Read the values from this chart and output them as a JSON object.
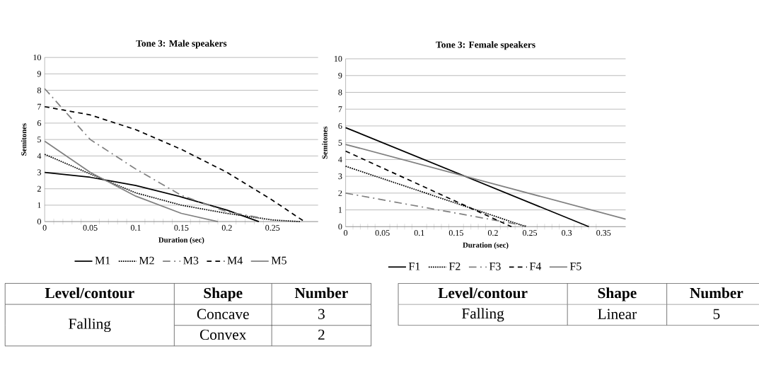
{
  "chart_data": [
    {
      "type": "line",
      "title": "Tone 3: Male speakers",
      "xlabel": "Duration (sec)",
      "ylabel": "Semitones",
      "xlim": [
        0,
        0.3
      ],
      "xticks": [
        0,
        0.05,
        0.1,
        0.15,
        0.2,
        0.25
      ],
      "ylim": [
        0,
        10
      ],
      "yticks": [
        0,
        1,
        2,
        3,
        4,
        5,
        6,
        7,
        8,
        9,
        10
      ],
      "grid": "y",
      "legend": "bottom",
      "series": [
        {
          "name": "M1",
          "color": "#000000",
          "line_style": "solid",
          "x": [
            0,
            0.05,
            0.1,
            0.15,
            0.2,
            0.235
          ],
          "values": [
            3.0,
            2.7,
            2.2,
            1.5,
            0.7,
            0
          ]
        },
        {
          "name": "M2",
          "color": "#000000",
          "line_style": "dotted",
          "x": [
            0,
            0.05,
            0.1,
            0.15,
            0.2,
            0.25,
            0.28
          ],
          "values": [
            4.1,
            2.9,
            1.75,
            1.0,
            0.5,
            0.1,
            0
          ]
        },
        {
          "name": "M3",
          "color": "#808080",
          "line_style": "dashdot",
          "x": [
            0,
            0.05,
            0.1,
            0.15,
            0.2,
            0.24
          ],
          "values": [
            8.1,
            5.0,
            3.2,
            1.6,
            0.6,
            0.2
          ]
        },
        {
          "name": "M4",
          "color": "#000000",
          "line_style": "dashed",
          "x": [
            0,
            0.05,
            0.1,
            0.15,
            0.2,
            0.25,
            0.285
          ],
          "values": [
            7.0,
            6.5,
            5.6,
            4.4,
            3.0,
            1.3,
            0
          ]
        },
        {
          "name": "M5",
          "color": "#808080",
          "line_style": "solid",
          "x": [
            0,
            0.05,
            0.1,
            0.15,
            0.19
          ],
          "values": [
            4.9,
            3.0,
            1.55,
            0.5,
            0
          ]
        }
      ],
      "annotations": [
        "Level/contour",
        "Shape",
        "Number",
        "Falling",
        "Concave",
        "3",
        "Convex",
        "2"
      ]
    },
    {
      "type": "line",
      "title": "Tone 3: Female speakers",
      "xlabel": "Duration (sec)",
      "ylabel": "Semitones",
      "xlim": [
        0,
        0.38
      ],
      "xticks": [
        0,
        0.05,
        0.1,
        0.15,
        0.2,
        0.25,
        0.3,
        0.35
      ],
      "ylim": [
        0,
        10
      ],
      "yticks": [
        0,
        1,
        2,
        3,
        4,
        5,
        6,
        7,
        8,
        9,
        10
      ],
      "grid": "y",
      "legend": "bottom",
      "series": [
        {
          "name": "F1",
          "color": "#000000",
          "line_style": "solid",
          "x": [
            0,
            0.33
          ],
          "values": [
            5.9,
            0
          ]
        },
        {
          "name": "F2",
          "color": "#000000",
          "line_style": "dotted",
          "x": [
            0,
            0.245
          ],
          "values": [
            3.6,
            0
          ]
        },
        {
          "name": "F3",
          "color": "#808080",
          "line_style": "dashdot",
          "x": [
            0,
            0.245
          ],
          "values": [
            2.0,
            0.05
          ]
        },
        {
          "name": "F4",
          "color": "#000000",
          "line_style": "dashed",
          "x": [
            0,
            0.225
          ],
          "values": [
            4.5,
            0
          ]
        },
        {
          "name": "F5",
          "color": "#808080",
          "line_style": "solid",
          "x": [
            0,
            0.38
          ],
          "values": [
            4.9,
            0.45
          ]
        }
      ],
      "annotations": [
        "Level/contour",
        "Shape",
        "Number",
        "Falling",
        "Linear",
        "5"
      ]
    }
  ]
}
